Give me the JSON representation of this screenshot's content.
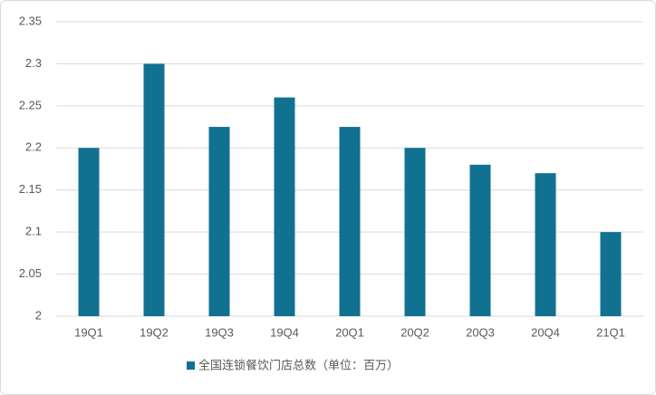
{
  "chart_data": {
    "type": "bar",
    "categories": [
      "19Q1",
      "19Q2",
      "19Q3",
      "19Q4",
      "20Q1",
      "20Q2",
      "20Q3",
      "20Q4",
      "21Q1"
    ],
    "series": [
      {
        "name": "全国连锁餐饮门店总数（单位：百万）",
        "color": "#117190",
        "values": [
          2.2,
          2.3,
          2.225,
          2.26,
          2.225,
          2.2,
          2.18,
          2.17,
          2.1
        ]
      }
    ],
    "ylim": [
      2,
      2.35
    ],
    "yticks": [
      2,
      2.05,
      2.1,
      2.15,
      2.2,
      2.25,
      2.3,
      2.35
    ],
    "grid": true,
    "legend": "bottom"
  }
}
